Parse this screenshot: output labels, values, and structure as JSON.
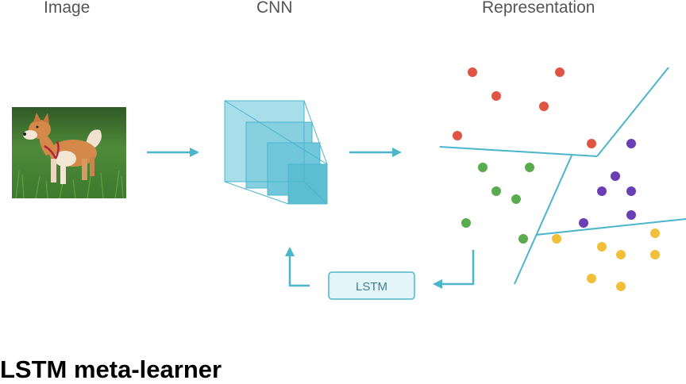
{
  "labels": {
    "image": "Image",
    "cnn": "CNN",
    "representation": "Representation"
  },
  "lstm_box_label": "LSTM",
  "title": "LSTM meta-learner",
  "colors": {
    "accent": "#4bb5cc",
    "cube_fill": "#7fcfdf",
    "red": "#e05443",
    "green": "#5aab4f",
    "purple": "#6a3eb5",
    "yellow": "#f2bf3a",
    "grass": "#4f8a3a",
    "dog": "#d4884a"
  },
  "icons": [
    "shiba-inu-dog-photo",
    "cnn-cube-stack",
    "arrow-right",
    "arrow-left",
    "arrow-up"
  ]
}
